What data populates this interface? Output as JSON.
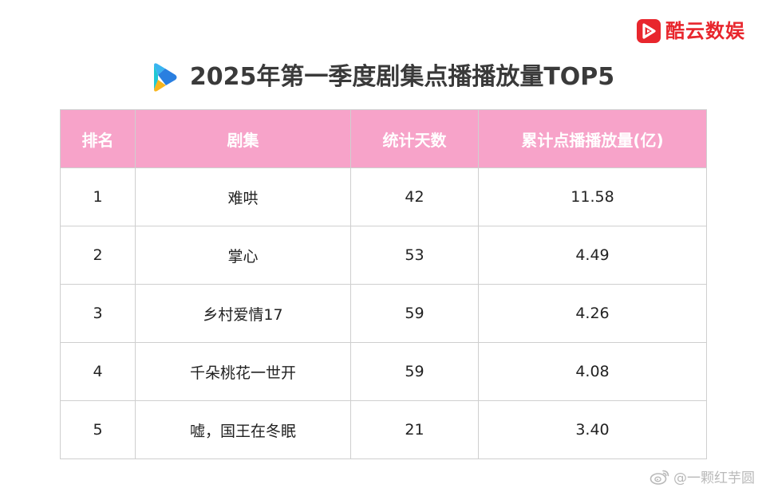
{
  "brand": {
    "name": "酷云数娱",
    "icon": "brand-logo-icon",
    "color": "#e8262d"
  },
  "title": {
    "text": "2025年第一季度剧集点播播放量TOP5",
    "icon": "play-triangle-icon"
  },
  "table": {
    "header_color": "#f7a3c9",
    "headers": {
      "rank": "排名",
      "drama": "剧集",
      "days": "统计天数",
      "plays": "累计点播播放量(亿)"
    },
    "rows": [
      {
        "rank": "1",
        "drama": "难哄",
        "days": "42",
        "plays": "11.58"
      },
      {
        "rank": "2",
        "drama": "掌心",
        "days": "53",
        "plays": "4.49"
      },
      {
        "rank": "3",
        "drama": "乡村爱情17",
        "days": "59",
        "plays": "4.26"
      },
      {
        "rank": "4",
        "drama": "千朵桃花一世开",
        "days": "59",
        "plays": "4.08"
      },
      {
        "rank": "5",
        "drama": "嘘，国王在冬眠",
        "days": "21",
        "plays": "3.40"
      }
    ]
  },
  "watermark": {
    "text": "@一颗红芋圆",
    "icon": "weibo-icon"
  }
}
